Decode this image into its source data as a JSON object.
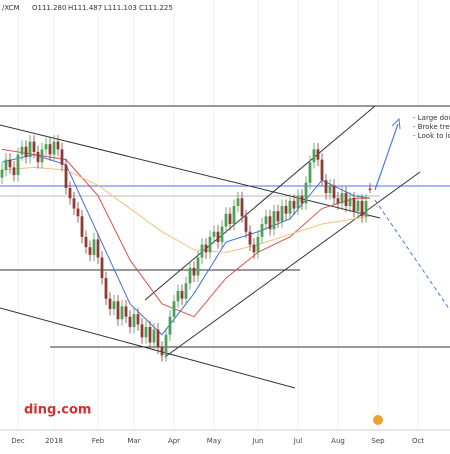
{
  "chart_data": {
    "type": "candlestick",
    "symbol": "/XCM",
    "ohlc_text": {
      "open": "O111.280",
      "high": "H111.487",
      "low": "L111.103",
      "close": "C111.225"
    },
    "annotations": [
      "- Large down",
      "- Broke trend",
      "- Look to lon"
    ],
    "watermark": "ding.com",
    "up_color": "#4fa05a",
    "down_color": "#8e3b36",
    "ylim": [
      101.9,
      118.6
    ],
    "categories": [
      null,
      null,
      null,
      null,
      "Dec",
      null,
      null,
      null,
      null,
      null,
      null,
      null,
      null,
      "2018",
      null,
      null,
      null,
      null,
      null,
      null,
      null,
      null,
      null,
      null,
      "Feb",
      null,
      null,
      null,
      null,
      null,
      null,
      null,
      null,
      "Mar",
      null,
      null,
      null,
      null,
      null,
      null,
      null,
      null,
      null,
      "Apr",
      null,
      null,
      null,
      null,
      null,
      null,
      null,
      null,
      null,
      "May",
      null,
      null,
      null,
      null,
      null,
      null,
      null,
      null,
      null,
      null,
      "Jun",
      null,
      null,
      null,
      null,
      null,
      null,
      null,
      null,
      null,
      "Jul",
      null,
      null,
      null,
      null,
      null,
      null,
      null,
      null,
      null,
      "Aug",
      null,
      null,
      null,
      null,
      null,
      null,
      null,
      null,
      null,
      "Sep",
      null,
      null,
      null,
      null,
      null,
      null,
      null,
      null,
      null,
      "Oct",
      null,
      null,
      null,
      null,
      null,
      null,
      null
    ],
    "open": [
      111.7,
      112.0,
      112.4,
      112.1,
      111.8,
      112.6,
      112.9,
      112.5,
      113.1,
      112.7,
      112.3,
      112.8,
      113.0,
      112.6,
      113.1,
      112.8,
      112.2,
      111.3,
      110.9,
      110.5,
      110.2,
      109.4,
      109.0,
      108.7,
      109.3,
      108.6,
      107.8,
      107.0,
      106.6,
      106.9,
      106.2,
      106.7,
      106.3,
      105.9,
      106.4,
      106.0,
      105.5,
      105.9,
      105.3,
      105.8,
      105.1,
      104.8,
      105.6,
      106.3,
      106.9,
      107.3,
      107.0,
      107.6,
      108.2,
      107.9,
      108.6,
      109.1,
      108.8,
      109.4,
      109.6,
      109.2,
      109.8,
      110.3,
      109.9,
      110.6,
      110.9,
      110.2,
      109.6,
      109.1,
      108.8,
      109.4,
      109.9,
      110.2,
      109.7,
      110.4,
      110.0,
      110.6,
      110.3,
      110.8,
      110.5,
      111.0,
      110.7,
      111.5,
      112.3,
      112.8,
      112.4,
      111.6,
      111.1,
      111.4,
      110.9,
      110.7,
      111.1,
      110.6,
      110.9,
      110.4,
      110.8,
      110.2,
      111.28,
      null,
      null,
      null,
      null,
      null,
      null,
      null,
      null,
      null,
      null,
      null,
      null,
      null,
      null,
      null,
      null,
      null,
      null,
      null
    ],
    "high": [
      112.25,
      112.65,
      112.65,
      112.35,
      112.85,
      113.15,
      113.15,
      113.35,
      113.35,
      112.95,
      113.05,
      113.25,
      113.25,
      113.35,
      113.35,
      113.05,
      112.45,
      111.55,
      111.15,
      110.75,
      110.45,
      109.65,
      109.25,
      109.55,
      109.55,
      108.85,
      108.05,
      107.25,
      107.15,
      107.15,
      106.95,
      106.95,
      106.55,
      106.65,
      106.65,
      106.25,
      106.15,
      106.15,
      106.05,
      106.05,
      105.35,
      105.85,
      106.55,
      107.15,
      107.55,
      107.55,
      107.85,
      108.45,
      108.45,
      108.85,
      109.35,
      109.35,
      109.65,
      109.85,
      109.85,
      110.05,
      110.55,
      110.55,
      110.85,
      111.15,
      111.15,
      110.45,
      109.85,
      109.35,
      109.65,
      110.15,
      110.45,
      110.45,
      110.65,
      110.65,
      110.85,
      110.85,
      111.05,
      111.05,
      111.25,
      111.25,
      111.75,
      112.55,
      113.05,
      113.05,
      112.65,
      111.85,
      111.65,
      111.65,
      111.15,
      111.35,
      111.35,
      111.15,
      111.15,
      111.05,
      111.05,
      111.05,
      111.487,
      null,
      null,
      null,
      null,
      null,
      null,
      null,
      null,
      null,
      null,
      null,
      null,
      null,
      null,
      null,
      null,
      null,
      null,
      null
    ],
    "low": [
      111.45,
      111.75,
      111.85,
      111.55,
      111.55,
      112.35,
      112.25,
      112.25,
      112.45,
      112.05,
      112.05,
      112.55,
      112.35,
      112.35,
      112.55,
      111.95,
      111.05,
      110.65,
      110.25,
      109.95,
      109.15,
      108.75,
      108.45,
      108.45,
      108.35,
      107.55,
      106.75,
      106.35,
      106.35,
      105.95,
      105.95,
      106.05,
      105.65,
      105.65,
      105.75,
      105.25,
      105.25,
      105.05,
      105.05,
      104.85,
      104.55,
      104.55,
      105.35,
      106.05,
      106.65,
      106.75,
      106.75,
      107.35,
      107.65,
      107.65,
      108.35,
      108.55,
      108.55,
      109.15,
      108.95,
      108.95,
      109.55,
      109.65,
      109.65,
      110.35,
      109.95,
      109.35,
      108.85,
      108.55,
      108.55,
      109.15,
      109.65,
      109.45,
      109.45,
      109.75,
      109.75,
      110.05,
      110.05,
      110.25,
      110.25,
      110.45,
      110.45,
      111.25,
      112.05,
      112.15,
      111.35,
      110.85,
      110.85,
      110.65,
      110.45,
      110.45,
      110.35,
      110.35,
      110.15,
      110.15,
      109.95,
      109.95,
      111.103,
      null,
      null,
      null,
      null,
      null,
      null,
      null,
      null,
      null,
      null,
      null,
      null,
      null,
      null,
      null,
      null,
      null,
      null,
      null
    ],
    "close": [
      112.0,
      112.4,
      112.1,
      111.8,
      112.6,
      112.9,
      112.5,
      113.1,
      112.7,
      112.3,
      112.8,
      113.0,
      112.6,
      113.1,
      112.8,
      112.2,
      111.3,
      110.9,
      110.5,
      110.2,
      109.4,
      109.0,
      108.7,
      109.3,
      108.6,
      107.8,
      107.0,
      106.6,
      106.9,
      106.2,
      106.7,
      106.3,
      105.9,
      106.4,
      106.0,
      105.5,
      105.9,
      105.3,
      105.8,
      105.1,
      104.8,
      105.6,
      106.3,
      106.9,
      107.3,
      107.0,
      107.6,
      108.2,
      107.9,
      108.6,
      109.1,
      108.8,
      109.4,
      109.6,
      109.2,
      109.8,
      110.3,
      109.9,
      110.6,
      110.9,
      110.2,
      109.6,
      109.1,
      108.8,
      109.4,
      109.9,
      110.2,
      109.7,
      110.4,
      110.0,
      110.6,
      110.3,
      110.8,
      110.5,
      111.0,
      110.7,
      111.5,
      112.3,
      112.8,
      112.4,
      111.6,
      111.1,
      111.4,
      110.9,
      110.7,
      111.1,
      110.6,
      110.9,
      110.4,
      110.8,
      110.2,
      110.8,
      111.225,
      null,
      null,
      null,
      null,
      null,
      null,
      null,
      null,
      null,
      null,
      null,
      null,
      null,
      null,
      null,
      null,
      null,
      null,
      null
    ],
    "moving_averages": [
      {
        "color": "#3f6fd6",
        "x": [
          0,
          8,
          16,
          24,
          32,
          40,
          48,
          56,
          64,
          72,
          80,
          88,
          92
        ],
        "values": [
          112.3,
          112.6,
          112.2,
          109.5,
          106.8,
          105.6,
          107.2,
          109.2,
          109.6,
          110.1,
          111.6,
          111.0,
          110.9
        ]
      },
      {
        "color": "#d9534f",
        "x": [
          0,
          8,
          16,
          24,
          32,
          40,
          48,
          56,
          64,
          72,
          80,
          88,
          92
        ],
        "values": [
          112.8,
          112.6,
          112.4,
          111.0,
          108.5,
          106.8,
          106.3,
          107.8,
          108.8,
          109.4,
          110.5,
          110.9,
          110.9
        ]
      },
      {
        "color": "#f0c27b",
        "x": [
          0,
          8,
          16,
          24,
          32,
          40,
          48,
          56,
          64,
          72,
          80,
          88,
          92
        ],
        "values": [
          112.0,
          112.1,
          112.0,
          111.4,
          110.5,
          109.6,
          108.9,
          108.8,
          109.1,
          109.5,
          109.9,
          110.1,
          110.2
        ]
      }
    ]
  }
}
